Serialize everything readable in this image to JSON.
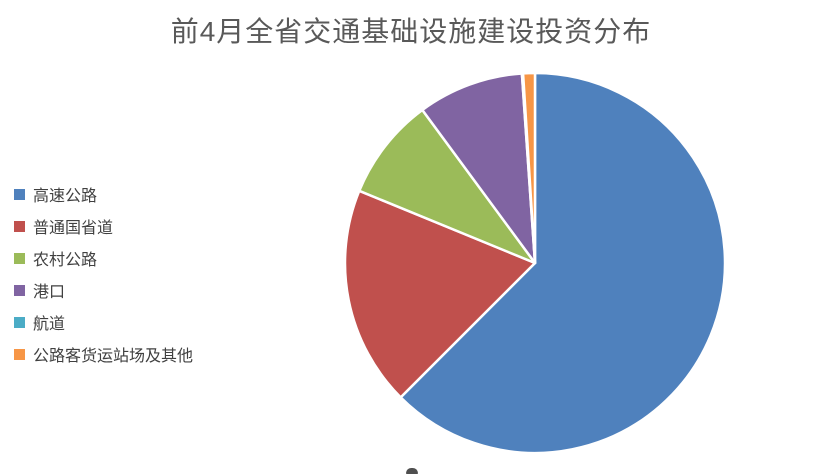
{
  "title": "前4月全省交通基础设施建设投资分布",
  "title_color": "#595959",
  "chart_data": {
    "type": "pie",
    "title": "前4月全省交通基础设施建设投资分布",
    "categories": [
      "高速公路",
      "普通国省道",
      "农村公路",
      "港口",
      "航道",
      "公路客货运站场及其他"
    ],
    "values": [
      62.5,
      18.7,
      8.7,
      9.0,
      0.1,
      1.0
    ],
    "unit": "percent",
    "values_estimated_from_angles": true,
    "colors": [
      "#4F81BD",
      "#C0504D",
      "#9BBB59",
      "#8064A2",
      "#4BACC6",
      "#F79646"
    ],
    "legend_position": "left",
    "start_angle": "12-oclock",
    "direction": "clockwise",
    "slice_gap_color": "#FFFFFF"
  },
  "legend": {
    "text_color": "#404040",
    "items": [
      {
        "label": "高速公路",
        "color": "#4F81BD"
      },
      {
        "label": "普通国省道",
        "color": "#C0504D"
      },
      {
        "label": "农村公路",
        "color": "#9BBB59"
      },
      {
        "label": "港口",
        "color": "#8064A2"
      },
      {
        "label": "航道",
        "color": "#4BACC6"
      },
      {
        "label": "公路客货运站场及其他",
        "color": "#F79646"
      }
    ]
  }
}
